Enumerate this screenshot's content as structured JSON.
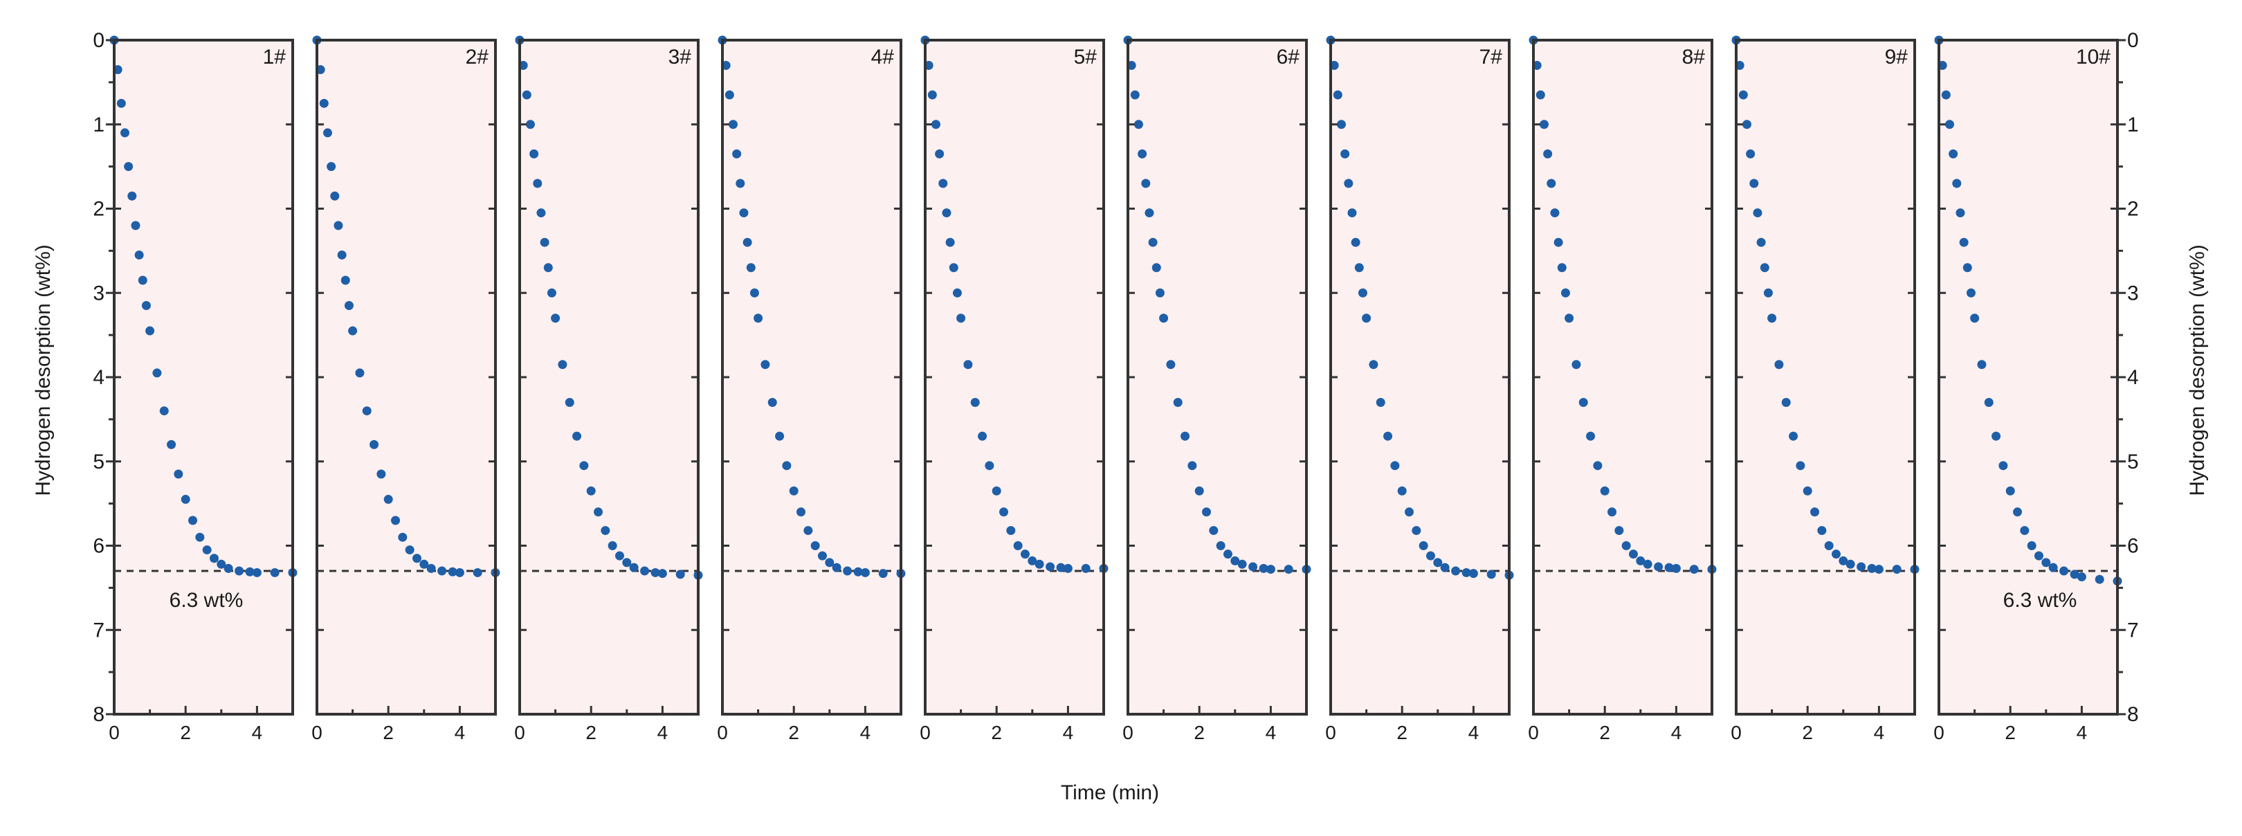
{
  "figure": {
    "xlabel": "Time (min)",
    "ylabel_left": "Hydrogen desorption (wt%)",
    "ylabel_right": "Hydrogen desorption (wt%)",
    "reference_label": "6.3 wt%",
    "colors": {
      "marker": "#1f5fa8",
      "panel_bg": "#fdf0f0",
      "axis": "#333333",
      "reference_line": "#333333"
    }
  },
  "chart_data": {
    "type": "scatter",
    "panels": [
      "1#",
      "2#",
      "3#",
      "4#",
      "5#",
      "6#",
      "7#",
      "8#",
      "9#",
      "10#"
    ],
    "x_ticks": [
      0,
      2,
      4
    ],
    "xlim": [
      0,
      5
    ],
    "ylim": [
      0,
      8
    ],
    "y_axis_inverted": true,
    "y_ticks": [
      0,
      1,
      2,
      3,
      4,
      5,
      6,
      7,
      8
    ],
    "reference_line": {
      "y": 6.3,
      "style": "dashed"
    },
    "grid": false,
    "series": [
      {
        "panel": "1#",
        "x": [
          0,
          0.1,
          0.2,
          0.3,
          0.4,
          0.5,
          0.6,
          0.7,
          0.8,
          0.9,
          1.0,
          1.2,
          1.4,
          1.6,
          1.8,
          2.0,
          2.2,
          2.4,
          2.6,
          2.8,
          3.0,
          3.2,
          3.5,
          3.8,
          4.0,
          4.5,
          5.0
        ],
        "y": [
          0,
          0.35,
          0.75,
          1.1,
          1.5,
          1.85,
          2.2,
          2.55,
          2.85,
          3.15,
          3.45,
          3.95,
          4.4,
          4.8,
          5.15,
          5.45,
          5.7,
          5.9,
          6.05,
          6.15,
          6.22,
          6.27,
          6.3,
          6.31,
          6.32,
          6.32,
          6.32
        ]
      },
      {
        "panel": "2#",
        "x": [
          0,
          0.1,
          0.2,
          0.3,
          0.4,
          0.5,
          0.6,
          0.7,
          0.8,
          0.9,
          1.0,
          1.2,
          1.4,
          1.6,
          1.8,
          2.0,
          2.2,
          2.4,
          2.6,
          2.8,
          3.0,
          3.2,
          3.5,
          3.8,
          4.0,
          4.5,
          5.0
        ],
        "y": [
          0,
          0.35,
          0.75,
          1.1,
          1.5,
          1.85,
          2.2,
          2.55,
          2.85,
          3.15,
          3.45,
          3.95,
          4.4,
          4.8,
          5.15,
          5.45,
          5.7,
          5.9,
          6.05,
          6.15,
          6.22,
          6.27,
          6.3,
          6.31,
          6.32,
          6.32,
          6.32
        ]
      },
      {
        "panel": "3#",
        "x": [
          0,
          0.1,
          0.2,
          0.3,
          0.4,
          0.5,
          0.6,
          0.7,
          0.8,
          0.9,
          1.0,
          1.2,
          1.4,
          1.6,
          1.8,
          2.0,
          2.2,
          2.4,
          2.6,
          2.8,
          3.0,
          3.2,
          3.5,
          3.8,
          4.0,
          4.5,
          5.0
        ],
        "y": [
          0,
          0.3,
          0.65,
          1.0,
          1.35,
          1.7,
          2.05,
          2.4,
          2.7,
          3.0,
          3.3,
          3.85,
          4.3,
          4.7,
          5.05,
          5.35,
          5.6,
          5.82,
          6.0,
          6.12,
          6.2,
          6.26,
          6.3,
          6.32,
          6.33,
          6.34,
          6.35
        ]
      },
      {
        "panel": "4#",
        "x": [
          0,
          0.1,
          0.2,
          0.3,
          0.4,
          0.5,
          0.6,
          0.7,
          0.8,
          0.9,
          1.0,
          1.2,
          1.4,
          1.6,
          1.8,
          2.0,
          2.2,
          2.4,
          2.6,
          2.8,
          3.0,
          3.2,
          3.5,
          3.8,
          4.0,
          4.5,
          5.0
        ],
        "y": [
          0,
          0.3,
          0.65,
          1.0,
          1.35,
          1.7,
          2.05,
          2.4,
          2.7,
          3.0,
          3.3,
          3.85,
          4.3,
          4.7,
          5.05,
          5.35,
          5.6,
          5.82,
          6.0,
          6.12,
          6.2,
          6.26,
          6.3,
          6.31,
          6.32,
          6.33,
          6.33
        ]
      },
      {
        "panel": "5#",
        "x": [
          0,
          0.1,
          0.2,
          0.3,
          0.4,
          0.5,
          0.6,
          0.7,
          0.8,
          0.9,
          1.0,
          1.2,
          1.4,
          1.6,
          1.8,
          2.0,
          2.2,
          2.4,
          2.6,
          2.8,
          3.0,
          3.2,
          3.5,
          3.8,
          4.0,
          4.5,
          5.0
        ],
        "y": [
          0,
          0.3,
          0.65,
          1.0,
          1.35,
          1.7,
          2.05,
          2.4,
          2.7,
          3.0,
          3.3,
          3.85,
          4.3,
          4.7,
          5.05,
          5.35,
          5.6,
          5.82,
          6.0,
          6.1,
          6.18,
          6.22,
          6.25,
          6.26,
          6.27,
          6.27,
          6.27
        ]
      },
      {
        "panel": "6#",
        "x": [
          0,
          0.1,
          0.2,
          0.3,
          0.4,
          0.5,
          0.6,
          0.7,
          0.8,
          0.9,
          1.0,
          1.2,
          1.4,
          1.6,
          1.8,
          2.0,
          2.2,
          2.4,
          2.6,
          2.8,
          3.0,
          3.2,
          3.5,
          3.8,
          4.0,
          4.5,
          5.0
        ],
        "y": [
          0,
          0.3,
          0.65,
          1.0,
          1.35,
          1.7,
          2.05,
          2.4,
          2.7,
          3.0,
          3.3,
          3.85,
          4.3,
          4.7,
          5.05,
          5.35,
          5.6,
          5.82,
          6.0,
          6.1,
          6.18,
          6.22,
          6.25,
          6.27,
          6.28,
          6.28,
          6.28
        ]
      },
      {
        "panel": "7#",
        "x": [
          0,
          0.1,
          0.2,
          0.3,
          0.4,
          0.5,
          0.6,
          0.7,
          0.8,
          0.9,
          1.0,
          1.2,
          1.4,
          1.6,
          1.8,
          2.0,
          2.2,
          2.4,
          2.6,
          2.8,
          3.0,
          3.2,
          3.5,
          3.8,
          4.0,
          4.5,
          5.0
        ],
        "y": [
          0,
          0.3,
          0.65,
          1.0,
          1.35,
          1.7,
          2.05,
          2.4,
          2.7,
          3.0,
          3.3,
          3.85,
          4.3,
          4.7,
          5.05,
          5.35,
          5.6,
          5.82,
          6.0,
          6.12,
          6.2,
          6.26,
          6.3,
          6.32,
          6.33,
          6.34,
          6.35
        ]
      },
      {
        "panel": "8#",
        "x": [
          0,
          0.1,
          0.2,
          0.3,
          0.4,
          0.5,
          0.6,
          0.7,
          0.8,
          0.9,
          1.0,
          1.2,
          1.4,
          1.6,
          1.8,
          2.0,
          2.2,
          2.4,
          2.6,
          2.8,
          3.0,
          3.2,
          3.5,
          3.8,
          4.0,
          4.5,
          5.0
        ],
        "y": [
          0,
          0.3,
          0.65,
          1.0,
          1.35,
          1.7,
          2.05,
          2.4,
          2.7,
          3.0,
          3.3,
          3.85,
          4.3,
          4.7,
          5.05,
          5.35,
          5.6,
          5.82,
          6.0,
          6.1,
          6.18,
          6.22,
          6.25,
          6.26,
          6.27,
          6.28,
          6.28
        ]
      },
      {
        "panel": "9#",
        "x": [
          0,
          0.1,
          0.2,
          0.3,
          0.4,
          0.5,
          0.6,
          0.7,
          0.8,
          0.9,
          1.0,
          1.2,
          1.4,
          1.6,
          1.8,
          2.0,
          2.2,
          2.4,
          2.6,
          2.8,
          3.0,
          3.2,
          3.5,
          3.8,
          4.0,
          4.5,
          5.0
        ],
        "y": [
          0,
          0.3,
          0.65,
          1.0,
          1.35,
          1.7,
          2.05,
          2.4,
          2.7,
          3.0,
          3.3,
          3.85,
          4.3,
          4.7,
          5.05,
          5.35,
          5.6,
          5.82,
          6.0,
          6.1,
          6.18,
          6.22,
          6.25,
          6.27,
          6.28,
          6.28,
          6.28
        ]
      },
      {
        "panel": "10#",
        "x": [
          0,
          0.1,
          0.2,
          0.3,
          0.4,
          0.5,
          0.6,
          0.7,
          0.8,
          0.9,
          1.0,
          1.2,
          1.4,
          1.6,
          1.8,
          2.0,
          2.2,
          2.4,
          2.6,
          2.8,
          3.0,
          3.2,
          3.5,
          3.8,
          4.0,
          4.5,
          5.0
        ],
        "y": [
          0,
          0.3,
          0.65,
          1.0,
          1.35,
          1.7,
          2.05,
          2.4,
          2.7,
          3.0,
          3.3,
          3.85,
          4.3,
          4.7,
          5.05,
          5.35,
          5.6,
          5.82,
          6.0,
          6.12,
          6.2,
          6.26,
          6.3,
          6.34,
          6.37,
          6.4,
          6.42
        ]
      }
    ]
  }
}
